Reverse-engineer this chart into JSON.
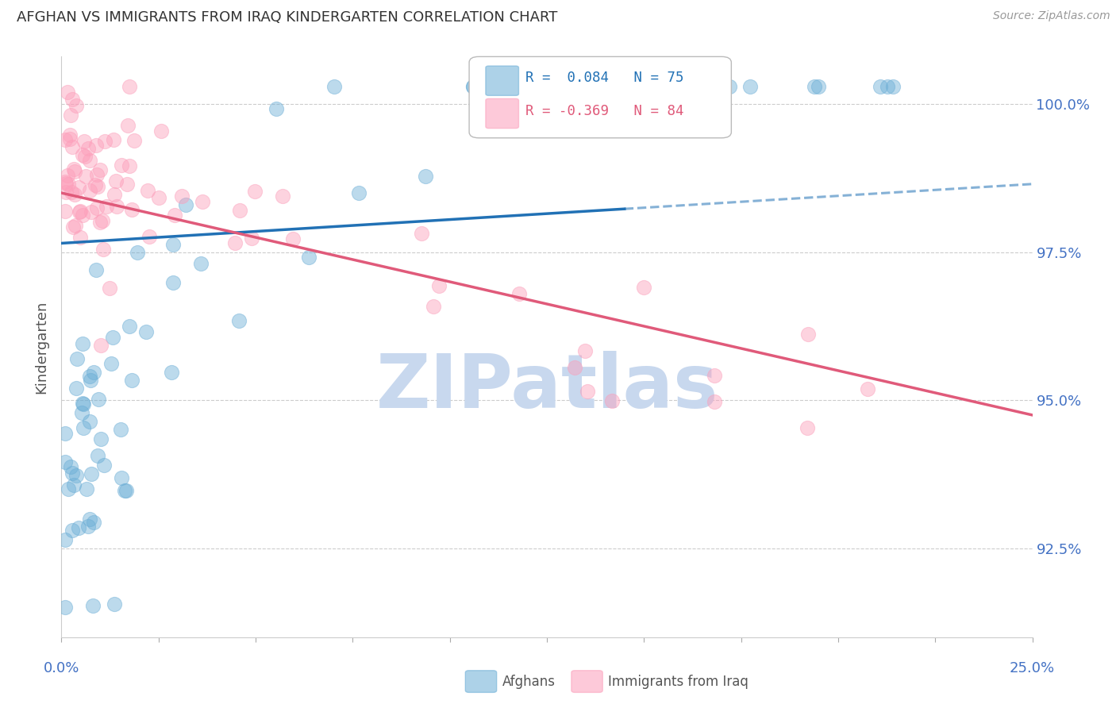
{
  "title": "AFGHAN VS IMMIGRANTS FROM IRAQ KINDERGARTEN CORRELATION CHART",
  "source": "Source: ZipAtlas.com",
  "ylabel": "Kindergarten",
  "ytick_labels": [
    "92.5%",
    "95.0%",
    "97.5%",
    "100.0%"
  ],
  "ytick_values": [
    0.925,
    0.95,
    0.975,
    1.0
  ],
  "xlim": [
    0.0,
    0.25
  ],
  "ylim": [
    0.91,
    1.008
  ],
  "legend_blue_r": "0.084",
  "legend_blue_n": "75",
  "legend_pink_r": "-0.369",
  "legend_pink_n": "84",
  "blue_color": "#6baed6",
  "pink_color": "#fc9eba",
  "blue_line_color": "#2171b5",
  "pink_line_color": "#e05a7a",
  "watermark_text": "ZIPatlas",
  "watermark_color": "#c8d8ee",
  "right_tick_color": "#4472C4",
  "bottom_tick_color": "#4472C4"
}
